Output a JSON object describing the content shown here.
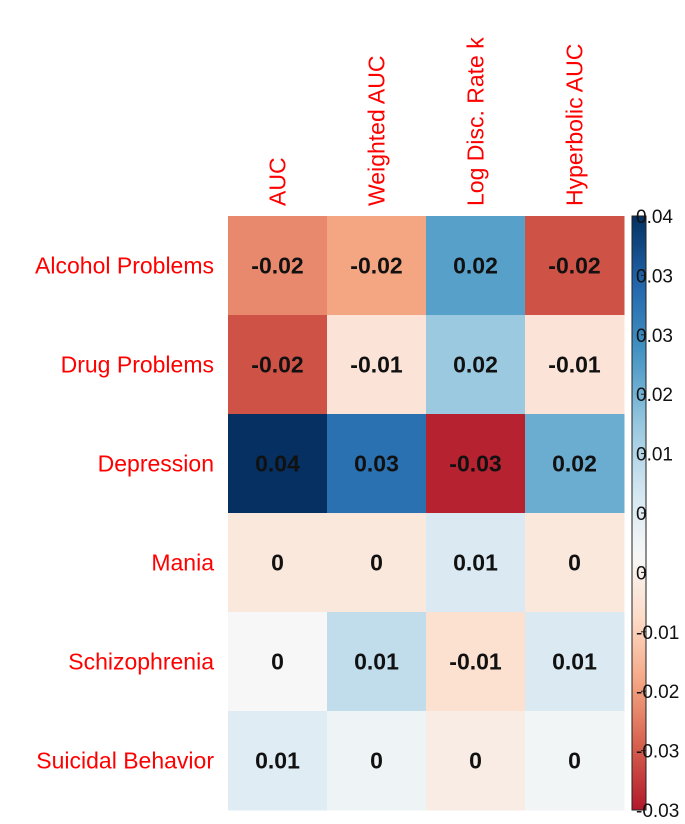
{
  "chart_data": {
    "type": "heatmap",
    "title": "",
    "rows": [
      "Alcohol Problems",
      "Drug Problems",
      "Depression",
      "Mania",
      "Schizophrenia",
      "Suicidal Behavior"
    ],
    "columns": [
      "AUC",
      "Weighted AUC",
      "Log Disc. Rate k",
      "Hyperbolic AUC"
    ],
    "values": [
      [
        -0.018,
        -0.015,
        0.022,
        -0.024
      ],
      [
        -0.024,
        -0.005,
        0.015,
        -0.005
      ],
      [
        0.04,
        0.03,
        -0.029,
        0.02
      ],
      [
        -0.004,
        -0.004,
        0.006,
        -0.004
      ],
      [
        0.0,
        0.01,
        -0.006,
        0.006
      ],
      [
        0.005,
        0.002,
        -0.003,
        0.001
      ]
    ],
    "labels": [
      [
        "-0.02",
        "-0.02",
        "0.02",
        "-0.02"
      ],
      [
        "-0.02",
        "-0.01",
        "0.02",
        "-0.01"
      ],
      [
        "0.04",
        "0.03",
        "-0.03",
        "0.02"
      ],
      [
        "0",
        "0",
        "0.01",
        "0"
      ],
      [
        "0",
        "0.01",
        "-0.01",
        "0.01"
      ],
      [
        "0.01",
        "0",
        "0",
        "0"
      ]
    ],
    "colorbar": {
      "range": [
        -0.03,
        0.04
      ],
      "ticks": [
        "0.04",
        "0.03",
        "0.03",
        "0.02",
        "0.01",
        "0",
        "0",
        "-0.01",
        "-0.02",
        "-0.03",
        "-0.03"
      ],
      "low_color": "#b2182b",
      "mid_color": "#f7f7f7",
      "high_color": "#053061"
    },
    "label_color": "#ff0000",
    "xlabel": "",
    "ylabel": ""
  }
}
